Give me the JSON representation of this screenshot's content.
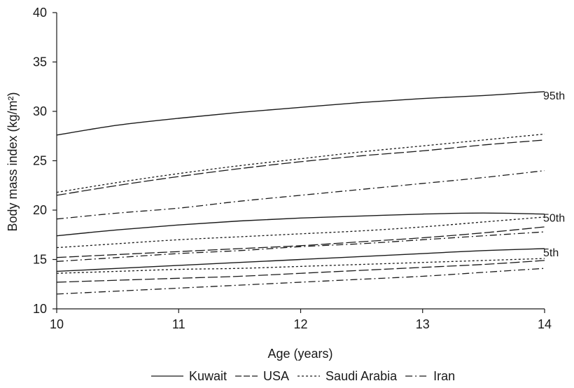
{
  "chart_data": {
    "type": "line",
    "title": "",
    "xlabel": "Age (years)",
    "ylabel": "Body mass index (kg/m²)",
    "xlim": [
      10,
      14
    ],
    "ylim": [
      10,
      40
    ],
    "xticks": [
      10,
      11,
      12,
      13,
      14
    ],
    "yticks": [
      10,
      15,
      20,
      25,
      30,
      35,
      40
    ],
    "grid": false,
    "legend_position": "bottom",
    "x": [
      10,
      10.5,
      11,
      11.5,
      12,
      12.5,
      13,
      13.5,
      14
    ],
    "series": [
      {
        "name": "Kuwait",
        "style": "solid",
        "percentile": "95th",
        "values": [
          27.6,
          28.6,
          29.3,
          29.9,
          30.4,
          30.9,
          31.3,
          31.6,
          32.0
        ]
      },
      {
        "name": "Saudi Arabia",
        "style": "dotted",
        "percentile": "95th",
        "values": [
          21.8,
          22.8,
          23.7,
          24.5,
          25.2,
          25.9,
          26.5,
          27.1,
          27.7
        ]
      },
      {
        "name": "USA",
        "style": "dashed",
        "percentile": "95th",
        "values": [
          21.5,
          22.5,
          23.4,
          24.2,
          24.9,
          25.5,
          26.0,
          26.6,
          27.1
        ]
      },
      {
        "name": "Iran",
        "style": "dashdot",
        "percentile": "95th",
        "values": [
          19.1,
          19.7,
          20.2,
          20.9,
          21.5,
          22.1,
          22.7,
          23.3,
          24.0
        ]
      },
      {
        "name": "Kuwait",
        "style": "solid",
        "percentile": "50th",
        "values": [
          17.4,
          18.0,
          18.5,
          18.9,
          19.2,
          19.4,
          19.6,
          19.7,
          19.6
        ]
      },
      {
        "name": "Saudi Arabia",
        "style": "dotted",
        "percentile": "50th",
        "values": [
          16.2,
          16.6,
          17.0,
          17.3,
          17.6,
          17.9,
          18.3,
          18.8,
          19.3
        ]
      },
      {
        "name": "USA",
        "style": "dashed",
        "percentile": "50th",
        "values": [
          15.2,
          15.5,
          15.8,
          16.1,
          16.4,
          16.8,
          17.2,
          17.7,
          18.3
        ]
      },
      {
        "name": "Iran",
        "style": "dashdot",
        "percentile": "50th",
        "values": [
          14.8,
          15.2,
          15.6,
          15.9,
          16.3,
          16.6,
          17.0,
          17.4,
          17.8
        ]
      },
      {
        "name": "Kuwait",
        "style": "solid",
        "percentile": "5th",
        "values": [
          13.8,
          14.1,
          14.4,
          14.7,
          15.0,
          15.3,
          15.6,
          15.9,
          16.1
        ]
      },
      {
        "name": "Saudi Arabia",
        "style": "dotted",
        "percentile": "5th",
        "values": [
          13.6,
          13.8,
          14.0,
          14.1,
          14.3,
          14.5,
          14.7,
          14.9,
          15.1
        ]
      },
      {
        "name": "USA",
        "style": "dashed",
        "percentile": "5th",
        "values": [
          12.7,
          12.9,
          13.1,
          13.3,
          13.6,
          13.9,
          14.2,
          14.5,
          14.9
        ]
      },
      {
        "name": "Iran",
        "style": "dashdot",
        "percentile": "5th",
        "values": [
          11.5,
          11.8,
          12.1,
          12.4,
          12.7,
          13.0,
          13.3,
          13.7,
          14.1
        ]
      }
    ],
    "annotations": [
      {
        "text": "95th",
        "x": 14,
        "y": 32.0
      },
      {
        "text": "50th",
        "x": 14,
        "y": 19.6
      },
      {
        "text": "5th",
        "x": 14,
        "y": 16.1
      }
    ],
    "legend": [
      {
        "label": "Kuwait",
        "style": "solid"
      },
      {
        "label": "USA",
        "style": "dashed"
      },
      {
        "label": "Saudi Arabia",
        "style": "dotted"
      },
      {
        "label": "Iran",
        "style": "dashdot"
      }
    ]
  }
}
